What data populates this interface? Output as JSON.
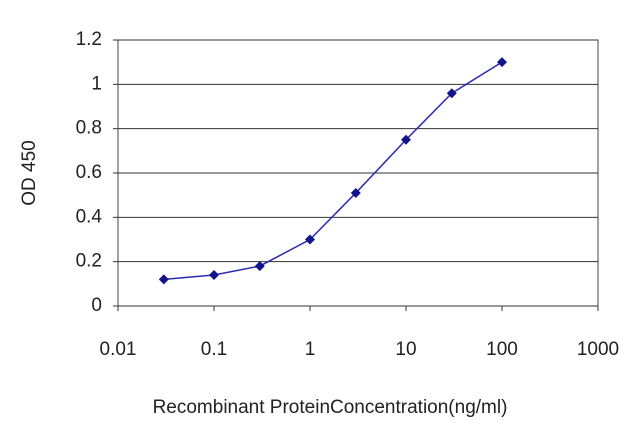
{
  "chart_data": {
    "type": "line",
    "x_label": "Recombinant ProteinConcentration(ng/ml)",
    "y_label": "OD 450",
    "x": [
      0.03,
      0.1,
      0.3,
      1,
      3,
      10,
      30,
      100
    ],
    "series": [
      {
        "color": "#2b2bb0",
        "marker_color": "#14148a",
        "values": [
          0.12,
          0.14,
          0.18,
          0.3,
          0.51,
          0.75,
          0.96,
          1.1
        ]
      }
    ],
    "xscale": "log",
    "xlim": [
      0.01,
      1000
    ],
    "xticks": [
      0.01,
      0.1,
      1,
      10,
      100,
      1000
    ],
    "ylim": [
      0,
      1.2
    ],
    "yticks": [
      0,
      0.2,
      0.4,
      0.6,
      0.8,
      1,
      1.2
    ],
    "grid": true
  }
}
